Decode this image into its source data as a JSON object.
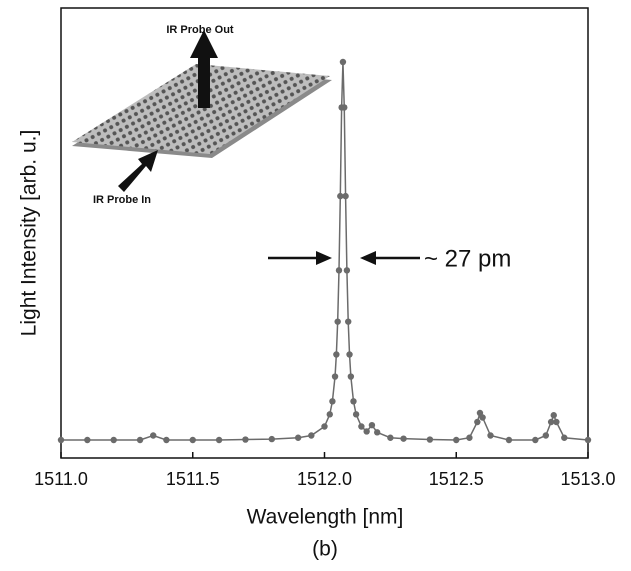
{
  "chart_data": {
    "type": "line",
    "x_label": "Wavelength [nm]",
    "y_label": "Light Intensity [arb. u.]",
    "caption": "(b)",
    "annotations": [
      "IR Probe Out",
      "IR Probe In",
      "~ 27 pm"
    ],
    "xlim": [
      1511.0,
      1513.0
    ],
    "xticks": [
      {
        "value": 1511.0,
        "label": "1511.0"
      },
      1511.5,
      {
        "value": 1512.0,
        "label": "1512.0"
      },
      1512.5,
      {
        "value": 1513.0,
        "label": "1513.0"
      }
    ],
    "ylim": [
      0,
      100
    ],
    "series": [
      {
        "color": "#6b6b6b",
        "x": [
          1511.0,
          1511.1,
          1511.2,
          1511.3,
          1511.35,
          1511.4,
          1511.5,
          1511.6,
          1511.7,
          1511.8,
          1511.9,
          1511.95,
          1512.0,
          1512.02,
          1512.03,
          1512.04,
          1512.045,
          1512.05,
          1512.055,
          1512.06,
          1512.065,
          1512.07,
          1512.075,
          1512.08,
          1512.085,
          1512.09,
          1512.095,
          1512.1,
          1512.11,
          1512.12,
          1512.14,
          1512.16,
          1512.18,
          1512.2,
          1512.25,
          1512.3,
          1512.4,
          1512.5,
          1512.55,
          1512.58,
          1512.59,
          1512.6,
          1512.63,
          1512.7,
          1512.8,
          1512.84,
          1512.86,
          1512.87,
          1512.88,
          1512.91,
          1513.0
        ],
        "values": [
          4,
          4,
          4,
          4,
          5,
          4,
          4,
          4,
          4.1,
          4.2,
          4.5,
          5,
          7,
          9.7,
          12.6,
          18.1,
          23,
          30.3,
          41.7,
          58.2,
          77.9,
          88,
          77.9,
          58.2,
          41.7,
          30.3,
          23,
          18.1,
          12.6,
          9.7,
          7,
          5.9,
          7.3,
          5.7,
          4.5,
          4.3,
          4.1,
          4,
          4.5,
          8,
          10,
          9,
          5,
          4,
          4,
          5,
          8,
          9.5,
          8,
          4.5,
          4
        ]
      }
    ]
  }
}
